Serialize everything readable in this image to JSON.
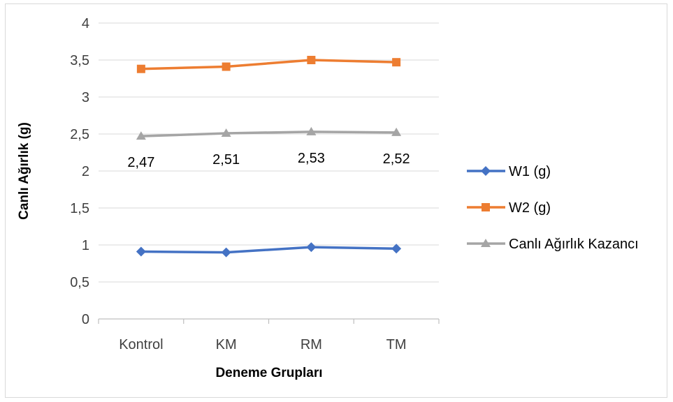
{
  "chart_data": {
    "type": "line",
    "xlabel": "Deneme Grupları",
    "ylabel": "Canlı Ağırlık (g)",
    "categories": [
      "Kontrol",
      "KM",
      "RM",
      "TM"
    ],
    "ylim": [
      0,
      4
    ],
    "yticks": [
      0,
      0.5,
      1,
      1.5,
      2,
      2.5,
      3,
      3.5,
      4
    ],
    "ytick_labels": [
      "0",
      "0,5",
      "1",
      "1,5",
      "2",
      "2,5",
      "3",
      "3,5",
      "4"
    ],
    "grid": true,
    "legend_position": "right",
    "series": [
      {
        "name": "W1 (g)",
        "values": [
          0.91,
          0.9,
          0.97,
          0.95
        ],
        "color": "#4472c4",
        "marker": "diamond"
      },
      {
        "name": "W2 (g)",
        "values": [
          3.38,
          3.41,
          3.5,
          3.47
        ],
        "color": "#ed7d31",
        "marker": "square"
      },
      {
        "name": "Canlı Ağırlık Kazancı",
        "values": [
          2.47,
          2.51,
          2.53,
          2.52
        ],
        "color": "#a5a5a5",
        "marker": "triangle",
        "data_labels": [
          "2,47",
          "2,51",
          "2,53",
          "2,52"
        ]
      }
    ]
  }
}
